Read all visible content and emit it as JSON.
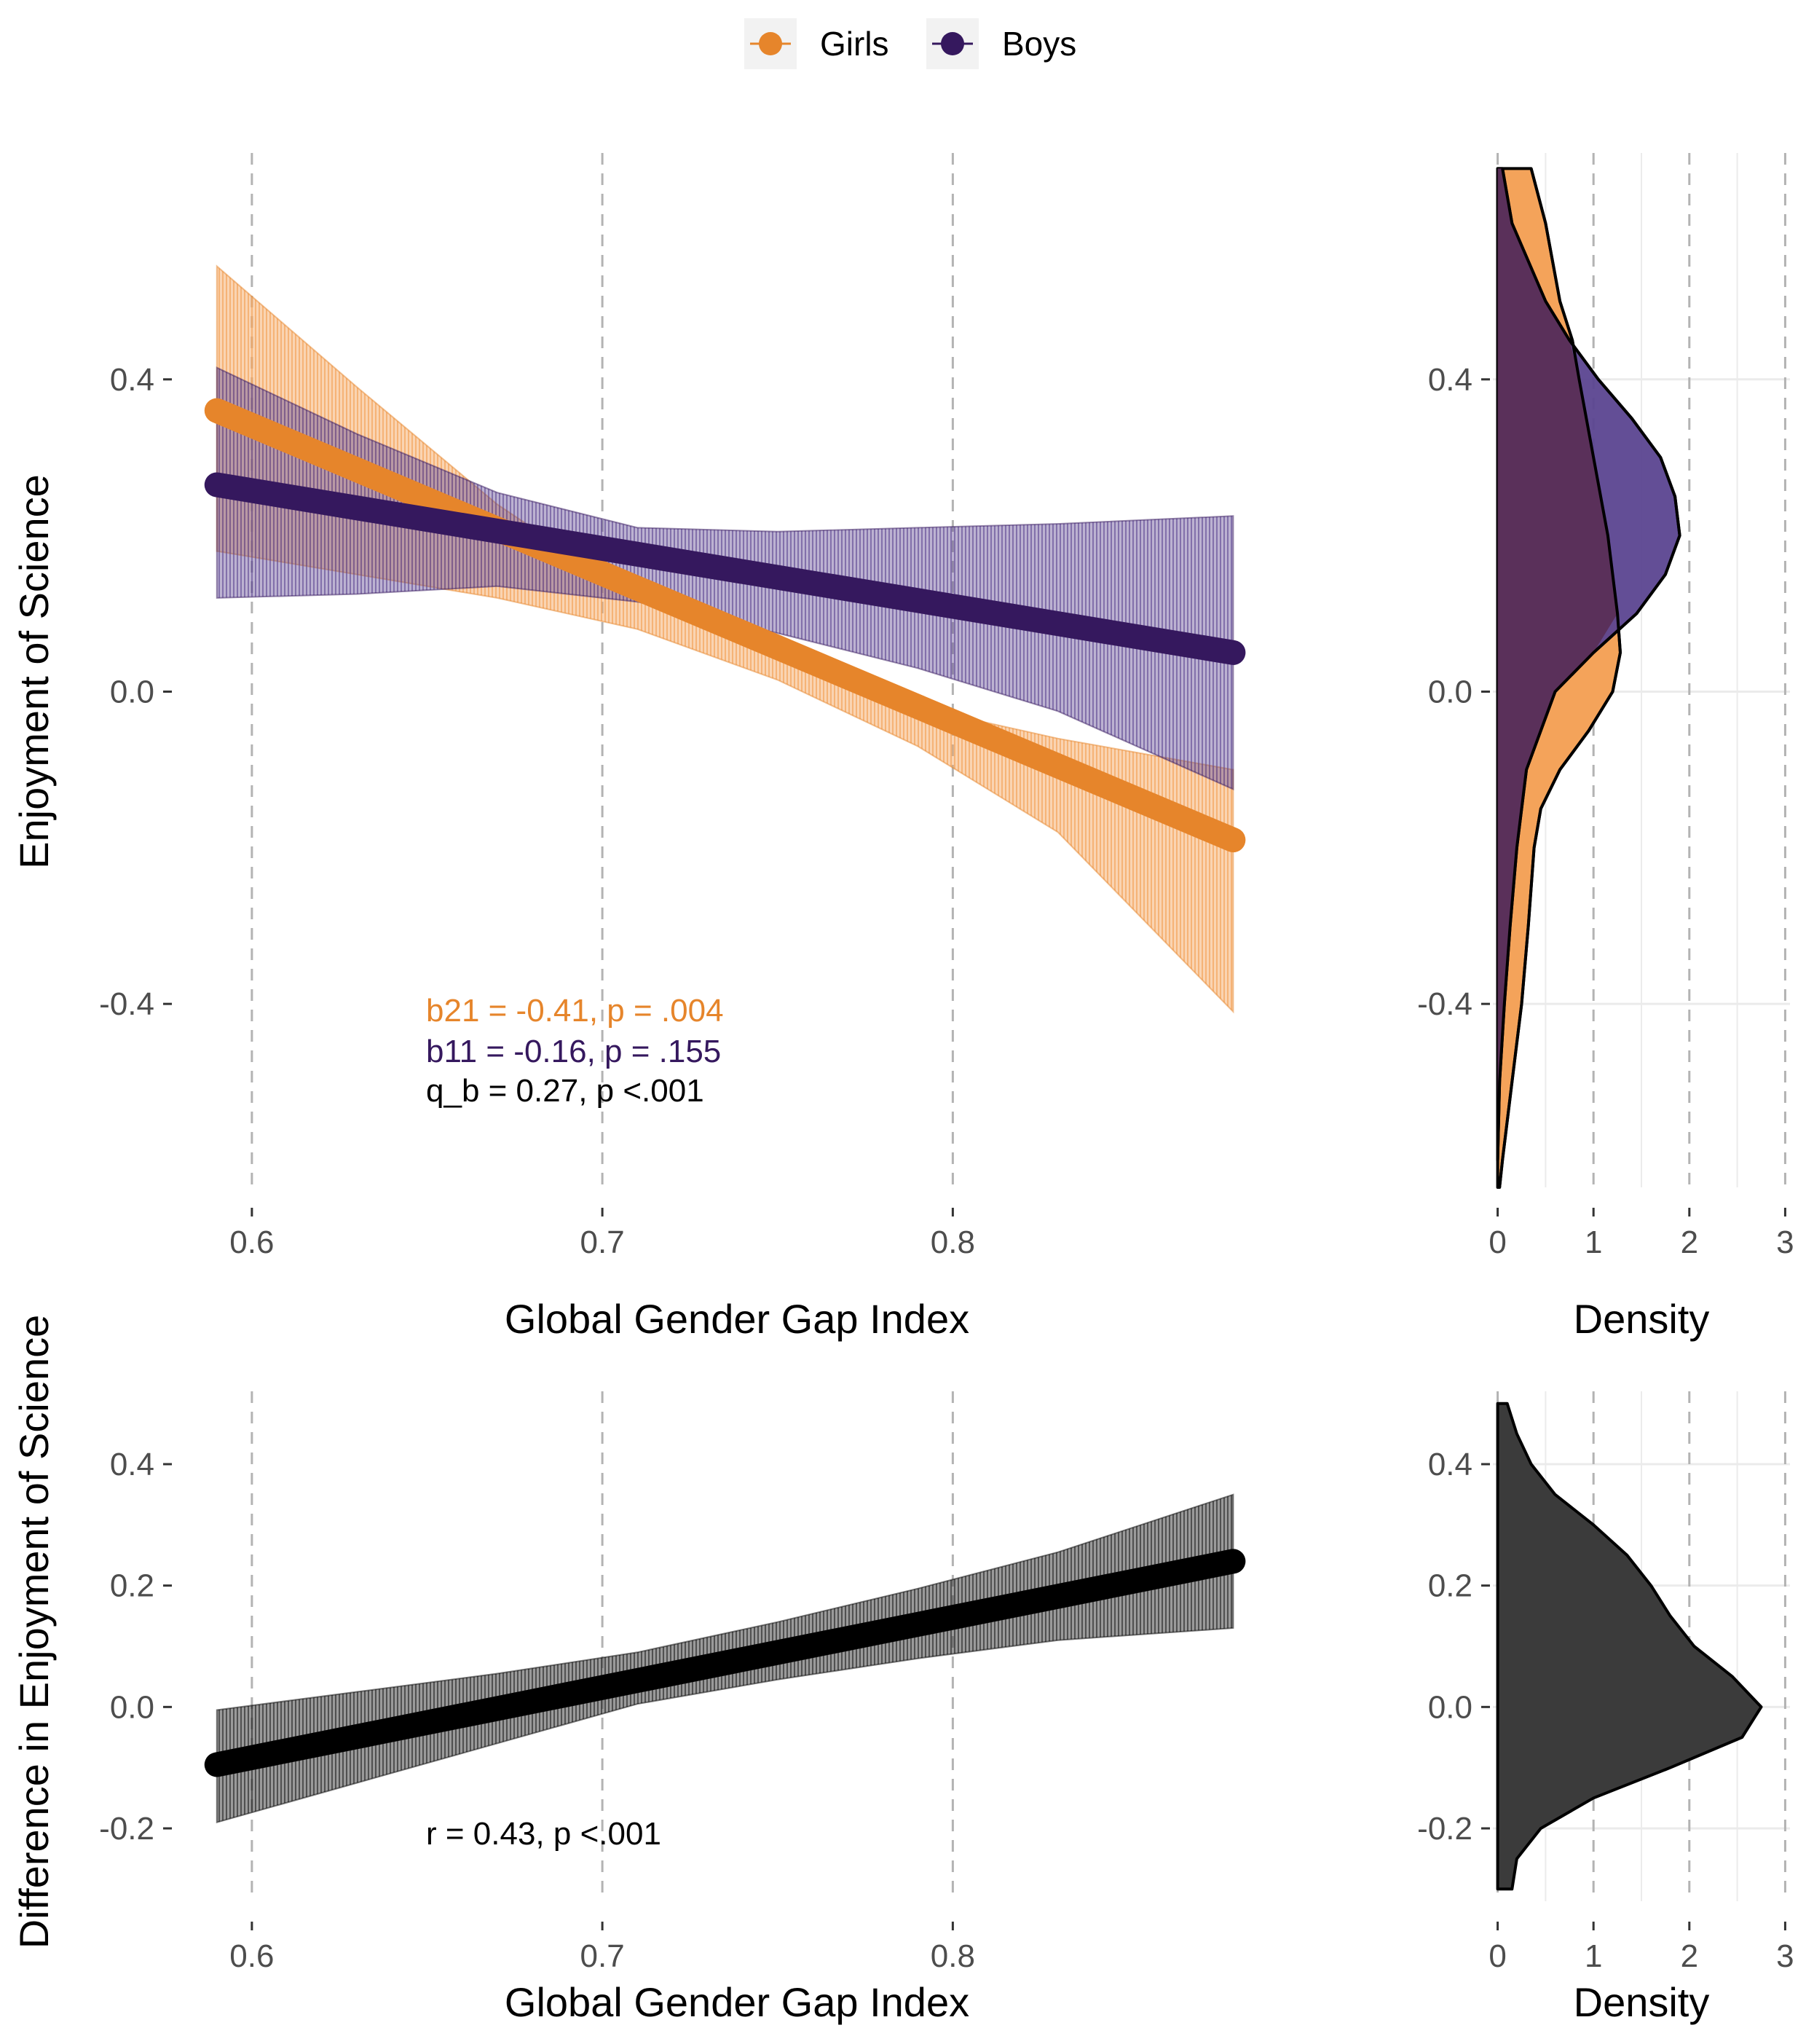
{
  "legend": {
    "items": [
      {
        "label": "Girls",
        "color": "#E6852B"
      },
      {
        "label": "Boys",
        "color": "#35185E"
      }
    ]
  },
  "colors": {
    "girls": "#E6852B",
    "girls_fill": "#F4A35A",
    "boys": "#35185E",
    "boys_fill": "#5B4490",
    "diff": "#000000",
    "diff_fill": "#333333",
    "grid_dashed": "#b3b3b3",
    "grid_light": "#ebebeb"
  },
  "chart_data": [
    {
      "id": "top-main",
      "type": "line",
      "xlabel": "Global Gender Gap Index",
      "ylabel": "Enjoyment of Science",
      "xlim": [
        0.578,
        0.898
      ],
      "ylim": [
        -0.635,
        0.69
      ],
      "xticks": [
        0.6,
        0.7,
        0.8
      ],
      "xtick_labels": [
        "0.6",
        "0.7",
        "0.8"
      ],
      "yticks": [
        0.4,
        0.0,
        -0.4
      ],
      "ytick_labels": [
        "0.4",
        "0.0",
        "-0.4"
      ],
      "grid": "dashed vertical",
      "series": [
        {
          "name": "Girls",
          "key": "girls",
          "x": [
            0.59,
            0.88
          ],
          "y": [
            0.36,
            -0.19
          ],
          "ribbon": {
            "x": [
              0.59,
              0.63,
              0.67,
              0.71,
              0.75,
              0.79,
              0.83,
              0.88
            ],
            "upper": [
              0.545,
              0.39,
              0.24,
              0.12,
              0.045,
              -0.02,
              -0.06,
              -0.1
            ],
            "lower": [
              0.18,
              0.15,
              0.12,
              0.08,
              0.015,
              -0.07,
              -0.18,
              -0.41
            ]
          }
        },
        {
          "name": "Boys",
          "key": "boys",
          "x": [
            0.59,
            0.88
          ],
          "y": [
            0.265,
            0.05
          ],
          "ribbon": {
            "x": [
              0.59,
              0.63,
              0.67,
              0.71,
              0.75,
              0.79,
              0.83,
              0.88
            ],
            "upper": [
              0.415,
              0.33,
              0.255,
              0.21,
              0.205,
              0.21,
              0.215,
              0.225
            ],
            "lower": [
              0.12,
              0.125,
              0.135,
              0.115,
              0.075,
              0.03,
              -0.025,
              -0.125
            ]
          }
        }
      ],
      "annotations": [
        {
          "text": "b21 = -0.41, p = .004",
          "color": "#E6852B"
        },
        {
          "text": "b11 = -0.16, p = .155",
          "color": "#35185E"
        },
        {
          "text": "q_b = 0.27, p <.001",
          "color": "#000000"
        }
      ]
    },
    {
      "id": "top-density",
      "type": "area",
      "xlabel": "Density",
      "xlim": [
        -0.05,
        3.05
      ],
      "ylim": [
        -0.635,
        0.69
      ],
      "xticks": [
        0,
        1,
        2,
        3
      ],
      "xtick_labels": [
        "0",
        "1",
        "2",
        "3"
      ],
      "yticks": [
        0.4,
        0.0,
        -0.4
      ],
      "ytick_labels": [
        "0.4",
        "0.0",
        "-0.4"
      ],
      "grid": "dashed vertical",
      "series": [
        {
          "name": "Girls",
          "key": "girls",
          "y": [
            0.67,
            0.6,
            0.5,
            0.45,
            0.4,
            0.3,
            0.2,
            0.1,
            0.05,
            0.0,
            -0.05,
            -0.1,
            -0.15,
            -0.2,
            -0.3,
            -0.4,
            -0.5,
            -0.6,
            -0.635
          ],
          "density": [
            0.35,
            0.5,
            0.65,
            0.78,
            0.85,
            1.0,
            1.15,
            1.25,
            1.28,
            1.2,
            0.95,
            0.65,
            0.45,
            0.38,
            0.32,
            0.25,
            0.15,
            0.05,
            0.02
          ]
        },
        {
          "name": "Boys",
          "key": "boys",
          "y": [
            0.67,
            0.6,
            0.5,
            0.45,
            0.4,
            0.35,
            0.3,
            0.25,
            0.2,
            0.15,
            0.1,
            0.05,
            0.0,
            -0.1,
            -0.2,
            -0.3,
            -0.4,
            -0.5,
            -0.6
          ],
          "density": [
            0.05,
            0.15,
            0.5,
            0.75,
            1.05,
            1.4,
            1.7,
            1.85,
            1.9,
            1.75,
            1.45,
            1.0,
            0.6,
            0.3,
            0.2,
            0.13,
            0.07,
            0.02,
            0.0
          ]
        }
      ]
    },
    {
      "id": "bottom-main",
      "type": "line",
      "xlabel": "Global Gender Gap Index",
      "ylabel": "Difference in Enjoyment of Science",
      "xlim": [
        0.578,
        0.898
      ],
      "ylim": [
        -0.32,
        0.52
      ],
      "xticks": [
        0.6,
        0.7,
        0.8
      ],
      "xtick_labels": [
        "0.6",
        "0.7",
        "0.8"
      ],
      "yticks": [
        0.4,
        0.2,
        0.0,
        -0.2
      ],
      "ytick_labels": [
        "0.4",
        "0.2",
        "0.0",
        "-0.2"
      ],
      "grid": "dashed vertical",
      "series": [
        {
          "key": "diff",
          "x": [
            0.59,
            0.88
          ],
          "y": [
            -0.095,
            0.24
          ],
          "ribbon": {
            "x": [
              0.59,
              0.63,
              0.67,
              0.71,
              0.75,
              0.79,
              0.83,
              0.88
            ],
            "upper": [
              -0.005,
              0.025,
              0.055,
              0.09,
              0.14,
              0.195,
              0.255,
              0.35
            ],
            "lower": [
              -0.19,
              -0.125,
              -0.06,
              0.005,
              0.045,
              0.08,
              0.11,
              0.13
            ]
          }
        }
      ],
      "annotations": [
        {
          "text": "r = 0.43, p <.001",
          "color": "#000000"
        }
      ]
    },
    {
      "id": "bottom-density",
      "type": "area",
      "xlabel": "Density",
      "xlim": [
        -0.05,
        3.05
      ],
      "ylim": [
        -0.32,
        0.52
      ],
      "xticks": [
        0,
        1,
        2,
        3
      ],
      "xtick_labels": [
        "0",
        "1",
        "2",
        "3"
      ],
      "yticks": [
        0.4,
        0.2,
        0.0,
        -0.2
      ],
      "ytick_labels": [
        "0.4",
        "0.2",
        "0.0",
        "-0.2"
      ],
      "grid": "dashed vertical",
      "series": [
        {
          "key": "diff",
          "y": [
            0.5,
            0.45,
            0.4,
            0.35,
            0.3,
            0.25,
            0.2,
            0.15,
            0.1,
            0.05,
            0.0,
            -0.05,
            -0.1,
            -0.15,
            -0.2,
            -0.25,
            -0.3
          ],
          "density": [
            0.1,
            0.2,
            0.35,
            0.6,
            1.0,
            1.35,
            1.6,
            1.8,
            2.05,
            2.45,
            2.75,
            2.55,
            1.8,
            1.0,
            0.45,
            0.2,
            0.15
          ]
        }
      ]
    }
  ]
}
